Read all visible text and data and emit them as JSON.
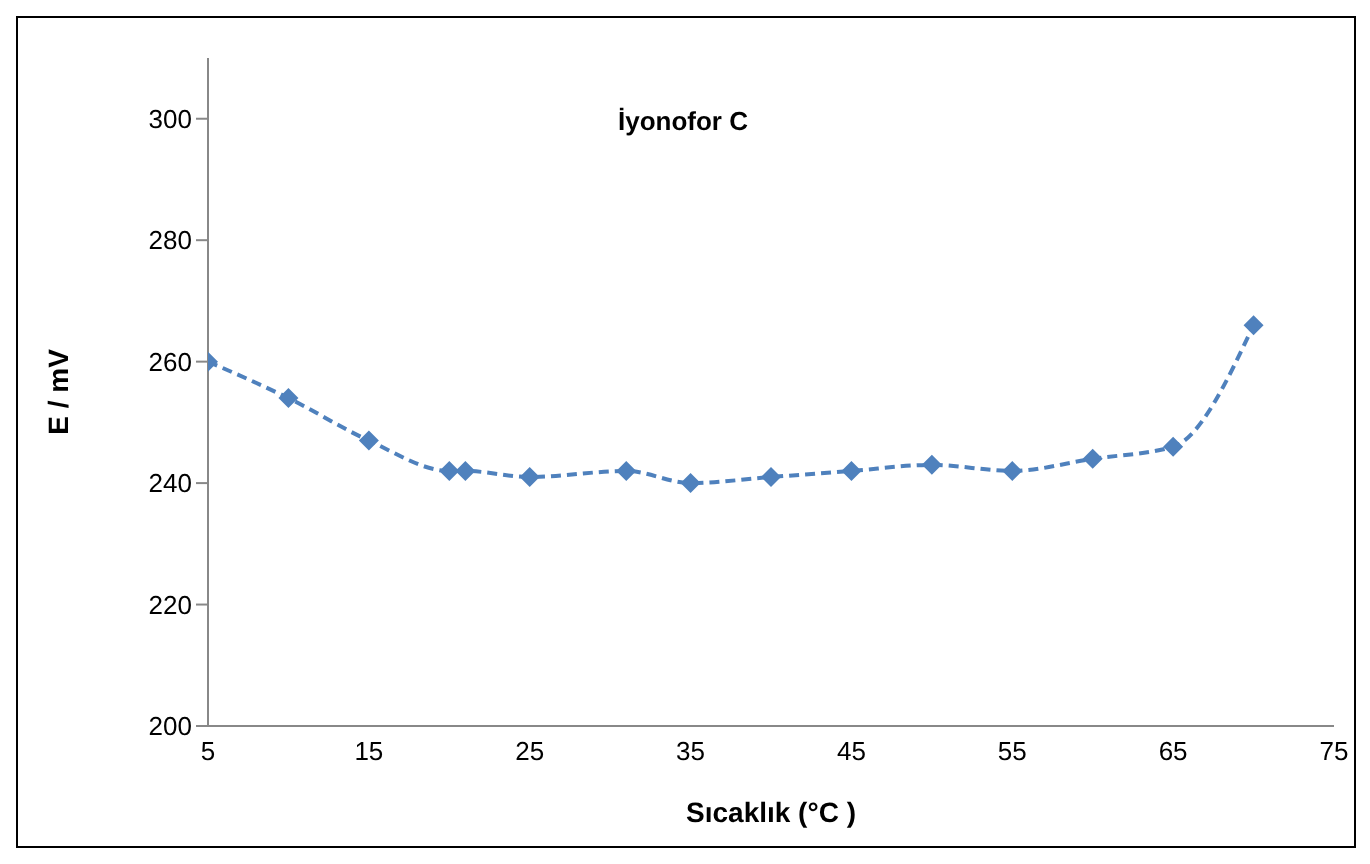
{
  "chart_data": {
    "type": "line",
    "title": "İyonofor C",
    "xlabel": "Sıcaklık (°C )",
    "ylabel": "E / mV",
    "x": [
      5,
      10,
      15,
      20,
      21,
      25,
      31,
      35,
      40,
      45,
      50,
      55,
      60,
      65,
      70
    ],
    "series": [
      {
        "color": "#4f81bd",
        "values": [
          260,
          254,
          247,
          242,
          242,
          241,
          242,
          240,
          241,
          242,
          243,
          242,
          244,
          246,
          266
        ]
      }
    ],
    "xlim": [
      5,
      75
    ],
    "xticks": [
      5,
      15,
      25,
      35,
      45,
      55,
      65,
      75
    ],
    "ylim": [
      200,
      310
    ],
    "yticks": [
      200,
      220,
      240,
      260,
      280,
      300
    ],
    "grid": false,
    "legend": false,
    "marker": "diamond",
    "line_style": "dashed"
  }
}
